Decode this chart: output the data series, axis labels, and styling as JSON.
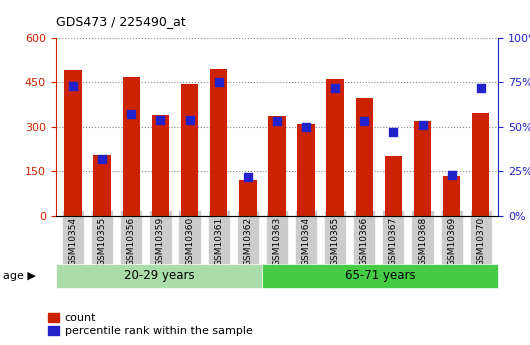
{
  "title": "GDS473 / 225490_at",
  "categories": [
    "GSM10354",
    "GSM10355",
    "GSM10356",
    "GSM10359",
    "GSM10360",
    "GSM10361",
    "GSM10362",
    "GSM10363",
    "GSM10364",
    "GSM10365",
    "GSM10366",
    "GSM10367",
    "GSM10368",
    "GSM10369",
    "GSM10370"
  ],
  "counts": [
    492,
    205,
    468,
    340,
    445,
    495,
    120,
    335,
    308,
    462,
    398,
    200,
    318,
    135,
    345
  ],
  "percentiles": [
    73,
    32,
    57,
    54,
    54,
    75,
    22,
    53,
    50,
    72,
    53,
    47,
    51,
    23,
    72
  ],
  "group1_label": "20-29 years",
  "group2_label": "65-71 years",
  "group1_count": 7,
  "group2_count": 8,
  "bar_color": "#cc2200",
  "pct_color": "#2222cc",
  "left_yticks": [
    0,
    150,
    300,
    450,
    600
  ],
  "right_yticks": [
    0,
    25,
    50,
    75,
    100
  ],
  "ylim_left": [
    0,
    600
  ],
  "ylim_right": [
    0,
    100
  ],
  "age_group1_bg": "#aaddaa",
  "age_group2_bg": "#44cc44",
  "xticklabel_bg": "#cccccc",
  "legend_count_label": "count",
  "legend_pct_label": "percentile rank within the sample",
  "fig_bg": "#ffffff"
}
